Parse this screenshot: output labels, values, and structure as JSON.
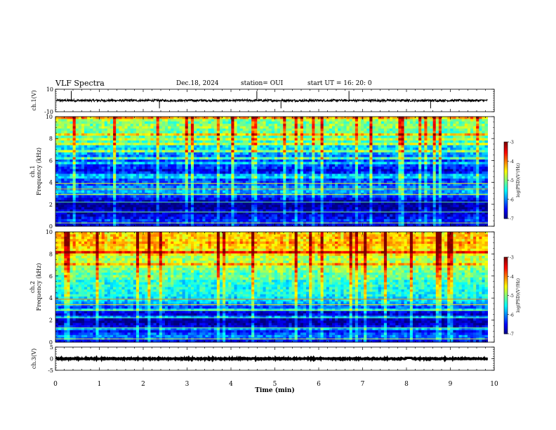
{
  "header": {
    "title": "VLF Spectra",
    "date": "Dec.18, 2024",
    "station": "station= OUI",
    "start": "start  UT =   16: 20: 0"
  },
  "colors": {
    "waveform": "#000000",
    "spectrogram_background": "#10106e"
  },
  "chart_data": [
    {
      "type": "line",
      "name": "ch.1 waveform",
      "ylabel": "ch.1(V)",
      "ylim": [
        -10,
        10
      ],
      "yticks": [
        10,
        -10
      ],
      "xlim": [
        0,
        10
      ],
      "baseline": 0,
      "noise_amplitude": 1.0,
      "spikes_x": [
        0.36,
        2.37,
        4.59,
        5.14,
        6.69,
        8.55
      ]
    },
    {
      "type": "heatmap",
      "name": "ch.1 spectrogram",
      "ylabel": "ch.1\nFrequency (kHz)",
      "ylim": [
        0,
        10
      ],
      "yticks": [
        0,
        2,
        4,
        6,
        8,
        10
      ],
      "xlim": [
        0,
        9.85
      ],
      "colorbar": {
        "label": "log(PSD)(V²/Hz)",
        "range": [
          -7,
          -3
        ],
        "ticks": [
          -3,
          -4,
          -5,
          -6,
          -7
        ]
      },
      "frequency_profile": [
        {
          "freq": 0.0,
          "log_psd": -6.9
        },
        {
          "freq": 0.3,
          "log_psd": -6.3
        },
        {
          "freq": 1.0,
          "log_psd": -6.6
        },
        {
          "freq": 2.0,
          "log_psd": -6.9
        },
        {
          "freq": 2.6,
          "log_psd": -6.4
        },
        {
          "freq": 3.2,
          "log_psd": -5.7
        },
        {
          "freq": 4.0,
          "log_psd": -6.2
        },
        {
          "freq": 5.0,
          "log_psd": -6.5
        },
        {
          "freq": 6.0,
          "log_psd": -6.2
        },
        {
          "freq": 7.0,
          "log_psd": -5.7
        },
        {
          "freq": 8.0,
          "log_psd": -5.2
        },
        {
          "freq": 9.0,
          "log_psd": -5.0
        },
        {
          "freq": 10.0,
          "log_psd": -5.0
        }
      ]
    },
    {
      "type": "heatmap",
      "name": "ch.2 spectrogram",
      "ylabel": "ch.2\nFrequency (kHz)",
      "ylim": [
        0,
        10
      ],
      "yticks": [
        0,
        2,
        4,
        6,
        8,
        10
      ],
      "xlim": [
        0,
        9.85
      ],
      "colorbar": {
        "label": "log(PSD)(V²/Hz)",
        "range": [
          -7,
          -3
        ],
        "ticks": [
          -3,
          -4,
          -5,
          -6,
          -7
        ]
      },
      "frequency_profile": [
        {
          "freq": 0.0,
          "log_psd": -6.8
        },
        {
          "freq": 0.4,
          "log_psd": -6.0
        },
        {
          "freq": 1.0,
          "log_psd": -6.5
        },
        {
          "freq": 2.0,
          "log_psd": -6.8
        },
        {
          "freq": 3.0,
          "log_psd": -6.4
        },
        {
          "freq": 3.8,
          "log_psd": -5.6
        },
        {
          "freq": 4.5,
          "log_psd": -5.5
        },
        {
          "freq": 5.5,
          "log_psd": -5.3
        },
        {
          "freq": 6.5,
          "log_psd": -5.0
        },
        {
          "freq": 7.5,
          "log_psd": -4.7
        },
        {
          "freq": 8.5,
          "log_psd": -4.3
        },
        {
          "freq": 9.5,
          "log_psd": -4.2
        },
        {
          "freq": 10.0,
          "log_psd": -4.3
        }
      ]
    },
    {
      "type": "line",
      "name": "ch.3 waveform",
      "ylabel": "ch.3(V)",
      "ylim": [
        -5,
        5
      ],
      "yticks": [
        5,
        0,
        -5
      ],
      "xlim": [
        0,
        10
      ],
      "baseline": 0,
      "noise_amplitude": 0.2,
      "dip_x": [
        8.0,
        8.12
      ]
    }
  ],
  "xaxis": {
    "label": "Time (min)",
    "ticks": [
      0,
      1,
      2,
      3,
      4,
      5,
      6,
      7,
      8,
      9,
      10
    ]
  }
}
